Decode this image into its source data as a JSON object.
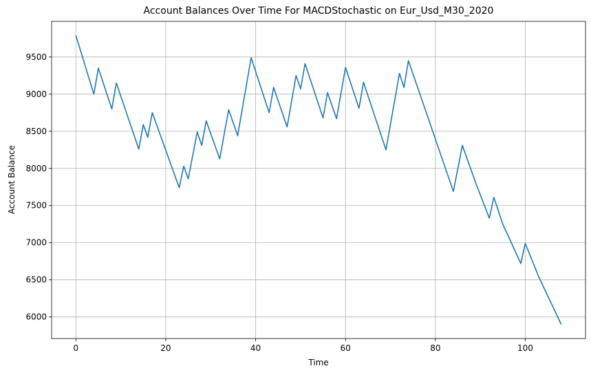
{
  "chart_data": {
    "type": "line",
    "title": "Account Balances Over Time For MACDStochastic on Eur_Usd_M30_2020",
    "xlabel": "Time",
    "ylabel": "Account Balance",
    "xlim": [
      -5.4,
      113.4
    ],
    "ylim": [
      5710,
      9980
    ],
    "xticks": [
      0,
      20,
      40,
      60,
      80,
      100
    ],
    "yticks": [
      6000,
      6500,
      7000,
      7500,
      8000,
      8500,
      9000,
      9500
    ],
    "grid": true,
    "color": "#1f77b4",
    "series": [
      {
        "x": [
          0,
          4,
          5,
          8,
          9,
          14,
          15,
          16,
          17,
          23,
          24,
          25,
          27,
          28,
          29,
          32,
          34,
          36,
          39,
          43,
          44,
          47,
          49,
          50,
          51,
          55,
          56,
          58,
          60,
          63,
          64,
          69,
          72,
          73,
          74,
          84,
          86,
          89,
          92,
          93,
          95,
          99,
          100,
          103,
          108
        ],
        "values": [
          9790,
          9000,
          9350,
          8800,
          9150,
          8260,
          8590,
          8420,
          8750,
          7740,
          8030,
          7860,
          8490,
          8310,
          8640,
          8130,
          8790,
          8440,
          9490,
          8750,
          9090,
          8560,
          9250,
          9070,
          9410,
          8680,
          9020,
          8670,
          9360,
          8810,
          9160,
          8250,
          9280,
          9090,
          9450,
          7690,
          8310,
          7800,
          7330,
          7610,
          7250,
          6720,
          6990,
          6540,
          5900
        ]
      }
    ]
  }
}
